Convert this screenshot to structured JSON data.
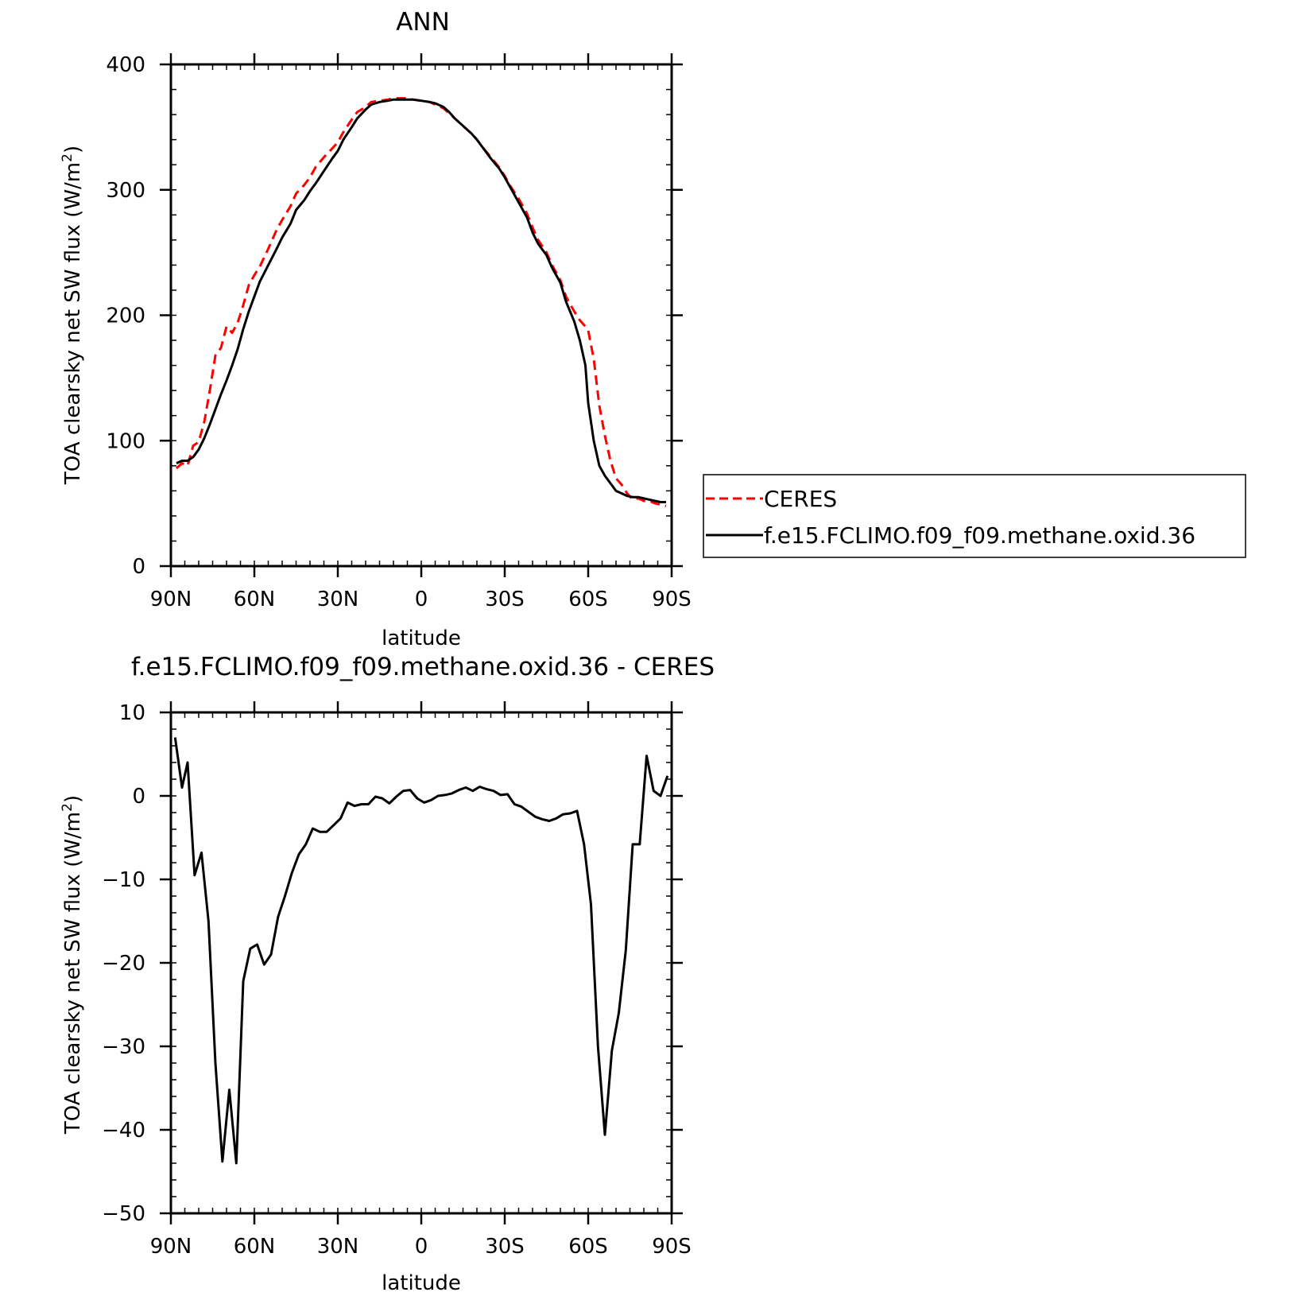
{
  "chart_data": [
    {
      "type": "line",
      "title": "ANN",
      "xlabel": "latitude",
      "ylabel": "TOA clearsky net SW flux (W/m",
      "ylabel_sup": "2",
      "ylabel_close": ")",
      "xlim": [
        90,
        -90
      ],
      "ylim": [
        0,
        400
      ],
      "xticks": [
        {
          "v": 90,
          "label": "90N"
        },
        {
          "v": 60,
          "label": "60N"
        },
        {
          "v": 30,
          "label": "30N"
        },
        {
          "v": 0,
          "label": "0"
        },
        {
          "v": -30,
          "label": "30S"
        },
        {
          "v": -60,
          "label": "60S"
        },
        {
          "v": -90,
          "label": "90S"
        }
      ],
      "yticks": [
        {
          "v": 0,
          "label": "0"
        },
        {
          "v": 100,
          "label": "100"
        },
        {
          "v": 200,
          "label": "200"
        },
        {
          "v": 300,
          "label": "300"
        },
        {
          "v": 400,
          "label": "400"
        }
      ],
      "legend": "right",
      "series": [
        {
          "name": "CERES",
          "color": "#ff0000",
          "style": "dashed",
          "points": [
            [
              88,
              78
            ],
            [
              86,
              82
            ],
            [
              84,
              80
            ],
            [
              82,
              96
            ],
            [
              80,
              99
            ],
            [
              78,
              115
            ],
            [
              76,
              140
            ],
            [
              74,
              168
            ],
            [
              72,
              174
            ],
            [
              70,
              191
            ],
            [
              68,
              186
            ],
            [
              66,
              194
            ],
            [
              64,
              208
            ],
            [
              62,
              224
            ],
            [
              60,
              232
            ],
            [
              58,
              239
            ],
            [
              55,
              253
            ],
            [
              52,
              268
            ],
            [
              50,
              276
            ],
            [
              47,
              287
            ],
            [
              45,
              297
            ],
            [
              42,
              304
            ],
            [
              40,
              310
            ],
            [
              38,
              318
            ],
            [
              35,
              326
            ],
            [
              32,
              333
            ],
            [
              30,
              338
            ],
            [
              28,
              346
            ],
            [
              25,
              356
            ],
            [
              23,
              362
            ],
            [
              20,
              366
            ],
            [
              18,
              370
            ],
            [
              15,
              371
            ],
            [
              12,
              372
            ],
            [
              10,
              373
            ],
            [
              8,
              373
            ],
            [
              5,
              373
            ],
            [
              3,
              372
            ],
            [
              0,
              371
            ],
            [
              -3,
              370
            ],
            [
              -5,
              368
            ],
            [
              -8,
              365
            ],
            [
              -10,
              361
            ],
            [
              -12,
              357
            ],
            [
              -15,
              351
            ],
            [
              -18,
              345
            ],
            [
              -20,
              340
            ],
            [
              -22,
              334
            ],
            [
              -25,
              326
            ],
            [
              -28,
              318
            ],
            [
              -30,
              311
            ],
            [
              -32,
              303
            ],
            [
              -35,
              293
            ],
            [
              -38,
              281
            ],
            [
              -40,
              270
            ],
            [
              -42,
              260
            ],
            [
              -45,
              250
            ],
            [
              -47,
              240
            ],
            [
              -50,
              228
            ],
            [
              -52,
              215
            ],
            [
              -55,
              203
            ],
            [
              -57,
              196
            ],
            [
              -59,
              191
            ],
            [
              -60,
              188
            ],
            [
              -62,
              165
            ],
            [
              -64,
              128
            ],
            [
              -66,
              104
            ],
            [
              -68,
              84
            ],
            [
              -70,
              70
            ],
            [
              -72,
              65
            ],
            [
              -74,
              58
            ],
            [
              -76,
              53
            ],
            [
              -78,
              54
            ],
            [
              -80,
              52
            ],
            [
              -82,
              52
            ],
            [
              -84,
              50
            ],
            [
              -86,
              49
            ],
            [
              -88,
              48
            ]
          ]
        },
        {
          "name": "f.e15.FCLIMO.f09_f09.methane.oxid.36",
          "color": "#000000",
          "style": "solid",
          "points": [
            [
              88,
              82
            ],
            [
              86,
              84
            ],
            [
              84,
              84
            ],
            [
              82,
              87
            ],
            [
              80,
              93
            ],
            [
              78,
              102
            ],
            [
              76,
              113
            ],
            [
              74,
              125
            ],
            [
              72,
              137
            ],
            [
              70,
              148
            ],
            [
              68,
              160
            ],
            [
              66,
              173
            ],
            [
              64,
              189
            ],
            [
              62,
              203
            ],
            [
              60,
              215
            ],
            [
              58,
              227
            ],
            [
              55,
              240
            ],
            [
              52,
              253
            ],
            [
              50,
              262
            ],
            [
              47,
              273
            ],
            [
              45,
              284
            ],
            [
              42,
              292
            ],
            [
              40,
              299
            ],
            [
              38,
              305
            ],
            [
              35,
              315
            ],
            [
              32,
              325
            ],
            [
              30,
              331
            ],
            [
              28,
              340
            ],
            [
              25,
              350
            ],
            [
              23,
              357
            ],
            [
              20,
              364
            ],
            [
              18,
              368
            ],
            [
              15,
              370
            ],
            [
              12,
              371
            ],
            [
              10,
              372
            ],
            [
              8,
              372
            ],
            [
              5,
              372
            ],
            [
              3,
              372
            ],
            [
              0,
              371
            ],
            [
              -3,
              370
            ],
            [
              -5,
              369
            ],
            [
              -8,
              366
            ],
            [
              -10,
              362
            ],
            [
              -12,
              357
            ],
            [
              -15,
              351
            ],
            [
              -18,
              345
            ],
            [
              -20,
              340
            ],
            [
              -22,
              334
            ],
            [
              -25,
              325
            ],
            [
              -28,
              317
            ],
            [
              -30,
              310
            ],
            [
              -32,
              302
            ],
            [
              -35,
              290
            ],
            [
              -38,
              278
            ],
            [
              -40,
              266
            ],
            [
              -42,
              257
            ],
            [
              -45,
              248
            ],
            [
              -47,
              238
            ],
            [
              -50,
              226
            ],
            [
              -52,
              211
            ],
            [
              -55,
              195
            ],
            [
              -57,
              180
            ],
            [
              -59,
              160
            ],
            [
              -60,
              130
            ],
            [
              -62,
              100
            ],
            [
              -64,
              80
            ],
            [
              -66,
              72
            ],
            [
              -68,
              66
            ],
            [
              -70,
              60
            ],
            [
              -72,
              58
            ],
            [
              -74,
              56
            ],
            [
              -76,
              55
            ],
            [
              -78,
              55
            ],
            [
              -80,
              54
            ],
            [
              -82,
              53
            ],
            [
              -84,
              52
            ],
            [
              -86,
              51
            ],
            [
              -88,
              51
            ]
          ]
        }
      ]
    },
    {
      "type": "line",
      "title": "f.e15.FCLIMO.f09_f09.methane.oxid.36 - CERES",
      "xlabel": "latitude",
      "ylabel": "TOA clearsky net SW flux (W/m",
      "ylabel_sup": "2",
      "ylabel_close": ")",
      "xlim": [
        90,
        -90
      ],
      "ylim": [
        -50,
        10
      ],
      "xticks": [
        {
          "v": 90,
          "label": "90N"
        },
        {
          "v": 60,
          "label": "60N"
        },
        {
          "v": 30,
          "label": "30N"
        },
        {
          "v": 0,
          "label": "0"
        },
        {
          "v": -30,
          "label": "30S"
        },
        {
          "v": -60,
          "label": "60S"
        },
        {
          "v": -90,
          "label": "90S"
        }
      ],
      "yticks": [
        {
          "v": -50,
          "label": "−50"
        },
        {
          "v": -40,
          "label": "−40"
        },
        {
          "v": -30,
          "label": "−30"
        },
        {
          "v": -20,
          "label": "−20"
        },
        {
          "v": -10,
          "label": "−10"
        },
        {
          "v": 0,
          "label": "0"
        },
        {
          "v": 10,
          "label": "10"
        }
      ],
      "series": [
        {
          "color": "#000000",
          "style": "solid",
          "points": [
            [
              88.5,
              7.0
            ],
            [
              86,
              1.0
            ],
            [
              84,
              4.0
            ],
            [
              81.5,
              -9.5
            ],
            [
              79,
              -6.8
            ],
            [
              76.5,
              -15.0
            ],
            [
              74,
              -32.0
            ],
            [
              71.5,
              -43.8
            ],
            [
              69,
              -35.2
            ],
            [
              66.5,
              -44.0
            ],
            [
              64,
              -22.2
            ],
            [
              61.5,
              -18.3
            ],
            [
              59,
              -17.8
            ],
            [
              56.5,
              -20.2
            ],
            [
              54,
              -19.0
            ],
            [
              51.5,
              -14.5
            ],
            [
              49,
              -12.0
            ],
            [
              46.5,
              -9.2
            ],
            [
              44,
              -7.0
            ],
            [
              41.5,
              -5.8
            ],
            [
              39,
              -3.9
            ],
            [
              36.5,
              -4.3
            ],
            [
              34,
              -4.3
            ],
            [
              31.5,
              -3.5
            ],
            [
              29,
              -2.7
            ],
            [
              26.5,
              -0.8
            ],
            [
              24,
              -1.2
            ],
            [
              21.5,
              -1.0
            ],
            [
              19,
              -1.0
            ],
            [
              16.5,
              -0.1
            ],
            [
              14,
              -0.3
            ],
            [
              11.5,
              -0.9
            ],
            [
              9,
              -0.1
            ],
            [
              6.5,
              0.6
            ],
            [
              4,
              0.7
            ],
            [
              1.5,
              -0.3
            ],
            [
              -1,
              -0.8
            ],
            [
              -3.5,
              -0.5
            ],
            [
              -6,
              0.0
            ],
            [
              -8.5,
              0.1
            ],
            [
              -11,
              0.3
            ],
            [
              -13.5,
              0.7
            ],
            [
              -16,
              1.0
            ],
            [
              -18.5,
              0.6
            ],
            [
              -21,
              1.1
            ],
            [
              -23.5,
              0.8
            ],
            [
              -26,
              0.6
            ],
            [
              -28.5,
              0.1
            ],
            [
              -31,
              0.2
            ],
            [
              -33.5,
              -1.0
            ],
            [
              -36,
              -1.3
            ],
            [
              -38.5,
              -1.9
            ],
            [
              -41,
              -2.5
            ],
            [
              -43.5,
              -2.8
            ],
            [
              -46,
              -3.0
            ],
            [
              -48.5,
              -2.7
            ],
            [
              -51,
              -2.2
            ],
            [
              -53.5,
              -2.1
            ],
            [
              -56,
              -1.8
            ],
            [
              -58.5,
              -5.8
            ],
            [
              -61,
              -13.0
            ],
            [
              -63.5,
              -30.0
            ],
            [
              -66,
              -40.6
            ],
            [
              -68.5,
              -30.5
            ],
            [
              -71,
              -26.0
            ],
            [
              -73.5,
              -18.5
            ],
            [
              -76,
              -5.8
            ],
            [
              -78.5,
              -5.8
            ],
            [
              -81,
              4.8
            ],
            [
              -83.5,
              0.6
            ],
            [
              -86,
              0.0
            ],
            [
              -88.5,
              2.4
            ]
          ]
        }
      ]
    }
  ]
}
